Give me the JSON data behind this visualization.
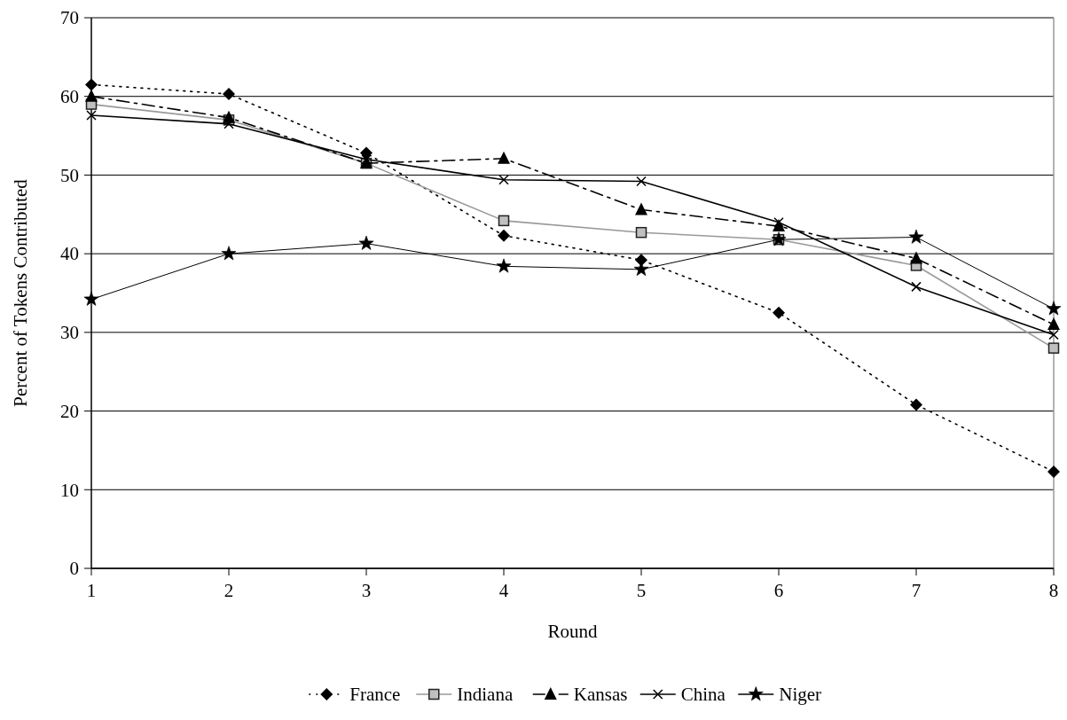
{
  "chart_data": {
    "type": "line",
    "xlabel": "Round",
    "ylabel": "Percent of Tokens Contributed",
    "categories": [
      "1",
      "2",
      "3",
      "4",
      "5",
      "6",
      "7",
      "8"
    ],
    "ylim": [
      0,
      70
    ],
    "yticks": [
      0,
      10,
      20,
      30,
      40,
      50,
      60,
      70
    ],
    "grid": "y",
    "legend": "bottom",
    "series": [
      {
        "name": "France",
        "color": "#000000",
        "marker": "diamond",
        "line_style": "dotted",
        "values": [
          61.5,
          60.3,
          52.8,
          42.3,
          39.2,
          32.5,
          20.8,
          12.3
        ]
      },
      {
        "name": "Indiana",
        "color": "#999999",
        "marker": "square",
        "line_style": "solid",
        "values": [
          59,
          57,
          51.5,
          44.2,
          42.7,
          41.8,
          38.5,
          28
        ]
      },
      {
        "name": "Kansas",
        "color": "#000000",
        "marker": "triangle",
        "line_style": "dashed",
        "values": [
          60,
          57.3,
          51.5,
          52.1,
          45.6,
          43.5,
          39.4,
          31
        ]
      },
      {
        "name": "China",
        "color": "#000000",
        "marker": "cross",
        "line_style": "solid",
        "values": [
          57.6,
          56.5,
          52,
          49.4,
          49.2,
          44,
          35.8,
          29.7
        ]
      },
      {
        "name": "Niger",
        "color": "#000000",
        "marker": "star",
        "line_style": "solid",
        "values": [
          34.2,
          40,
          41.3,
          38.4,
          38,
          41.8,
          42.1,
          33
        ]
      }
    ]
  }
}
